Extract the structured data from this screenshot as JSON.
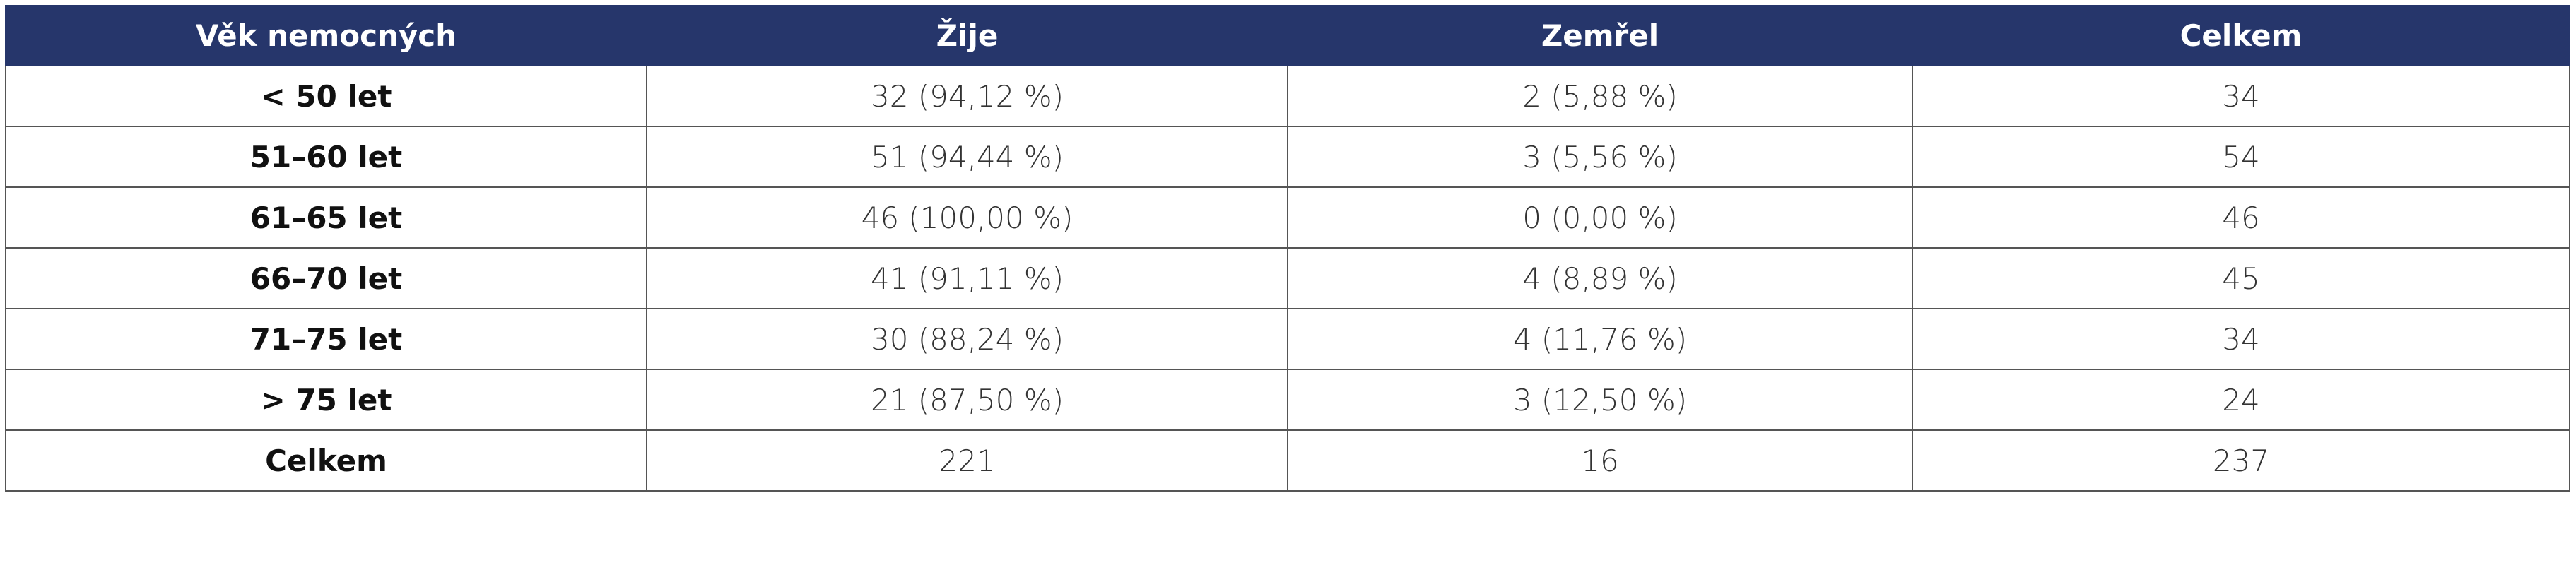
{
  "table": {
    "header": [
      "Věk nemocných",
      "Žije",
      "Zemřel",
      "Celkem"
    ],
    "rows": [
      [
        "< 50 let",
        "32 (94,12 %)",
        "2 (5,88 %)",
        "34"
      ],
      [
        "51–60 let",
        "51 (94,44 %)",
        "3 (5,56 %)",
        "54"
      ],
      [
        "61–65 let",
        "46 (100,00 %)",
        "0 (0,00 %)",
        "46"
      ],
      [
        "66–70 let",
        "41 (91,11 %)",
        "4 (8,89 %)",
        "45"
      ],
      [
        "71–75 let",
        "30 (88,24 %)",
        "4 (11,76 %)",
        "34"
      ],
      [
        "> 75 let",
        "21 (87,50 %)",
        "3 (12,50 %)",
        "24"
      ],
      [
        "Celkem",
        "221",
        "16",
        "237"
      ]
    ]
  }
}
